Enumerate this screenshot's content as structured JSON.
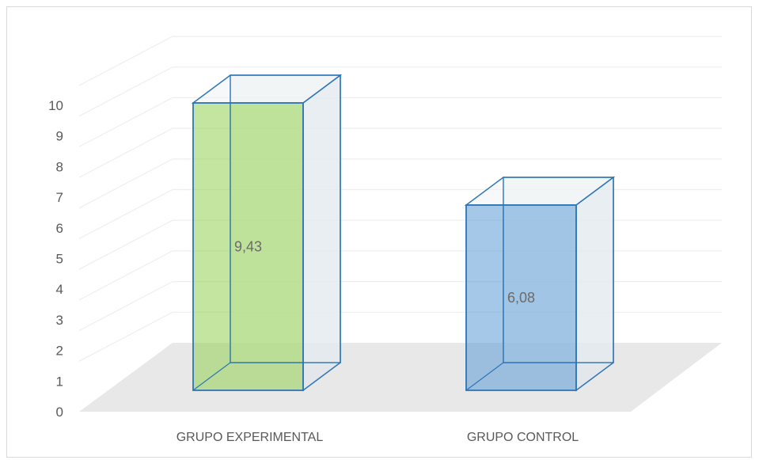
{
  "chart_data": {
    "type": "bar",
    "style": "3d-column",
    "categories": [
      "GRUPO EXPERIMENTAL",
      "GRUPO CONTROL"
    ],
    "values": [
      9.43,
      6.08
    ],
    "value_labels": [
      "9,43",
      "6,08"
    ],
    "ylim": [
      0,
      10
    ],
    "yticks": [
      0,
      1,
      2,
      3,
      4,
      5,
      6,
      7,
      8,
      9,
      10
    ],
    "grid": true,
    "legend": "none",
    "colors": {
      "bar_1": "#92d050",
      "bar_2": "#5b9bd5",
      "bar_outline": "#2e75b6",
      "gridline": "#eeeeee",
      "floor": "#e8e8e8",
      "text": "#595959"
    }
  }
}
